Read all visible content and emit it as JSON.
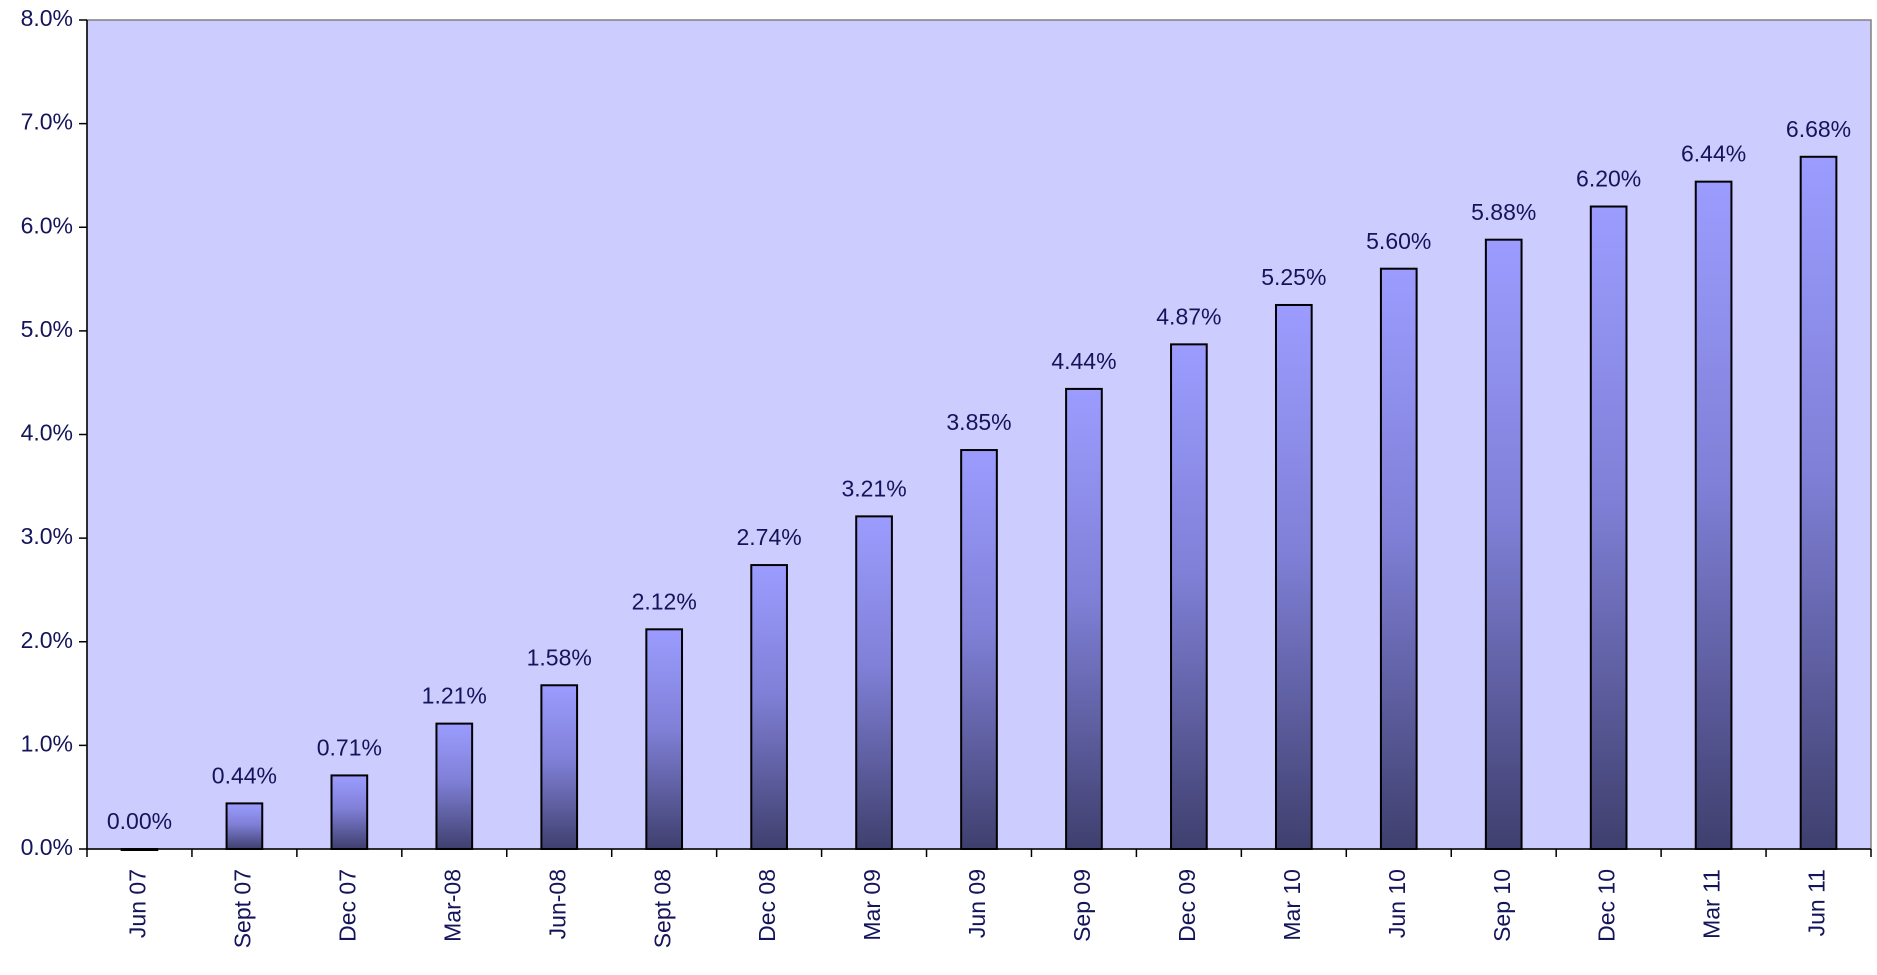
{
  "chart_data": {
    "type": "bar",
    "categories": [
      "Jun 07",
      "Sept 07",
      "Dec 07",
      "Mar-08",
      "Jun-08",
      "Sept 08",
      "Dec 08",
      "Mar 09",
      "Jun 09",
      "Sep 09",
      "Dec 09",
      "Mar 10",
      "Jun 10",
      "Sep 10",
      "Dec 10",
      "Mar 11",
      "Jun 11"
    ],
    "values": [
      0.0,
      0.44,
      0.71,
      1.21,
      1.58,
      2.12,
      2.74,
      3.21,
      3.85,
      4.44,
      4.87,
      5.25,
      5.6,
      5.88,
      6.2,
      6.44,
      6.68
    ],
    "value_labels": [
      "0.00%",
      "0.44%",
      "0.71%",
      "1.21%",
      "1.58%",
      "2.12%",
      "2.74%",
      "3.21%",
      "3.85%",
      "4.44%",
      "4.87%",
      "5.25%",
      "5.60%",
      "5.88%",
      "6.20%",
      "6.44%",
      "6.68%"
    ],
    "ylim": [
      0,
      8
    ],
    "yticks": [
      {
        "value": 0,
        "label": "0.0%"
      },
      {
        "value": 1,
        "label": "1.0%"
      },
      {
        "value": 2,
        "label": "2.0%"
      },
      {
        "value": 3,
        "label": "3.0%"
      },
      {
        "value": 4,
        "label": "4.0%"
      },
      {
        "value": 5,
        "label": "5.0%"
      },
      {
        "value": 6,
        "label": "6.0%"
      },
      {
        "value": 7,
        "label": "7.0%"
      },
      {
        "value": 8,
        "label": "8.0%"
      }
    ],
    "grid": false,
    "plot_background": "#ccccff",
    "color": "#9999ff"
  }
}
